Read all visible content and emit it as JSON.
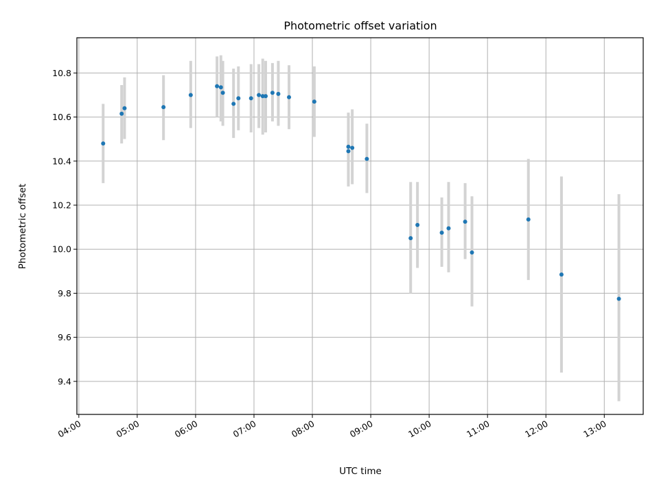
{
  "chart_data": {
    "type": "scatter",
    "title": "Photometric offset variation",
    "xlabel": "UTC time",
    "ylabel": "Photometric offset",
    "x_unit": "UTC time (HH:MM)",
    "xlim": [
      "03:58",
      "13:40"
    ],
    "ylim": [
      9.25,
      10.96
    ],
    "x_ticks": [
      "04:00",
      "05:00",
      "06:00",
      "07:00",
      "08:00",
      "09:00",
      "10:00",
      "11:00",
      "12:00",
      "13:00"
    ],
    "y_ticks": [
      "9.4",
      "9.6",
      "9.8",
      "10.0",
      "10.2",
      "10.4",
      "10.6",
      "10.8"
    ],
    "grid": true,
    "marker_color": "#1f77b4",
    "errorbar_color": "#d3d3d3",
    "points": [
      {
        "x": "04:25",
        "y": 10.48,
        "lo": 10.3,
        "hi": 10.66
      },
      {
        "x": "04:44",
        "y": 10.615,
        "lo": 10.48,
        "hi": 10.745
      },
      {
        "x": "04:47",
        "y": 10.64,
        "lo": 10.5,
        "hi": 10.78
      },
      {
        "x": "05:27",
        "y": 10.645,
        "lo": 10.495,
        "hi": 10.79
      },
      {
        "x": "05:55",
        "y": 10.7,
        "lo": 10.55,
        "hi": 10.855
      },
      {
        "x": "06:22",
        "y": 10.74,
        "lo": 10.6,
        "hi": 10.875
      },
      {
        "x": "06:26",
        "y": 10.735,
        "lo": 10.58,
        "hi": 10.88
      },
      {
        "x": "06:28",
        "y": 10.71,
        "lo": 10.56,
        "hi": 10.855
      },
      {
        "x": "06:39",
        "y": 10.66,
        "lo": 10.505,
        "hi": 10.82
      },
      {
        "x": "06:44",
        "y": 10.685,
        "lo": 10.54,
        "hi": 10.83
      },
      {
        "x": "06:57",
        "y": 10.685,
        "lo": 10.53,
        "hi": 10.84
      },
      {
        "x": "07:05",
        "y": 10.7,
        "lo": 10.55,
        "hi": 10.84
      },
      {
        "x": "07:09",
        "y": 10.695,
        "lo": 10.52,
        "hi": 10.865
      },
      {
        "x": "07:12",
        "y": 10.695,
        "lo": 10.53,
        "hi": 10.855
      },
      {
        "x": "07:19",
        "y": 10.71,
        "lo": 10.58,
        "hi": 10.845
      },
      {
        "x": "07:25",
        "y": 10.705,
        "lo": 10.56,
        "hi": 10.855
      },
      {
        "x": "07:36",
        "y": 10.69,
        "lo": 10.545,
        "hi": 10.835
      },
      {
        "x": "08:02",
        "y": 10.67,
        "lo": 10.51,
        "hi": 10.83
      },
      {
        "x": "08:37",
        "y": 10.445,
        "lo": 10.285,
        "hi": 10.615
      },
      {
        "x": "08:37",
        "y": 10.465,
        "lo": 10.3,
        "hi": 10.62
      },
      {
        "x": "08:41",
        "y": 10.46,
        "lo": 10.295,
        "hi": 10.635
      },
      {
        "x": "08:56",
        "y": 10.41,
        "lo": 10.255,
        "hi": 10.57
      },
      {
        "x": "09:41",
        "y": 10.05,
        "lo": 9.8,
        "hi": 10.305
      },
      {
        "x": "09:48",
        "y": 10.11,
        "lo": 9.915,
        "hi": 10.305
      },
      {
        "x": "10:13",
        "y": 10.075,
        "lo": 9.92,
        "hi": 10.235
      },
      {
        "x": "10:20",
        "y": 10.095,
        "lo": 9.895,
        "hi": 10.305
      },
      {
        "x": "10:37",
        "y": 10.125,
        "lo": 9.955,
        "hi": 10.3
      },
      {
        "x": "10:44",
        "y": 9.985,
        "lo": 9.74,
        "hi": 10.24
      },
      {
        "x": "11:42",
        "y": 10.135,
        "lo": 9.86,
        "hi": 10.41
      },
      {
        "x": "12:16",
        "y": 9.885,
        "lo": 9.44,
        "hi": 10.33
      },
      {
        "x": "13:15",
        "y": 9.775,
        "lo": 9.31,
        "hi": 10.25
      }
    ]
  }
}
